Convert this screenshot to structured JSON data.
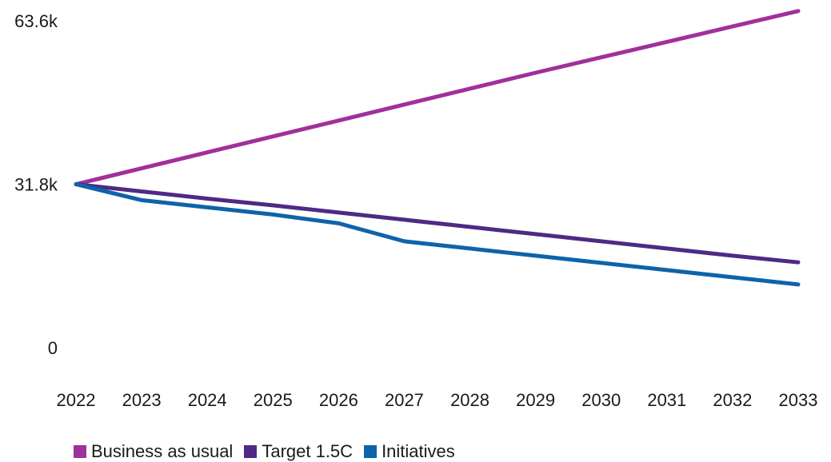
{
  "chart_data": {
    "type": "line",
    "title": "",
    "xlabel": "",
    "ylabel": "",
    "x": [
      "2022",
      "2023",
      "2024",
      "2025",
      "2026",
      "2027",
      "2028",
      "2029",
      "2030",
      "2031",
      "2032",
      "2033"
    ],
    "ylim": [
      0,
      63600
    ],
    "y_ticks": [
      {
        "value": 0,
        "label": "0"
      },
      {
        "value": 31800,
        "label": "31.8k"
      },
      {
        "value": 63600,
        "label": "63.6k"
      }
    ],
    "grid": false,
    "legend_position": "bottom-left",
    "series": [
      {
        "name": "Business as usual",
        "color": "#a0309a",
        "values": [
          31800,
          34900,
          38000,
          41100,
          44200,
          47300,
          50400,
          53500,
          56500,
          59500,
          62500,
          65500
        ]
      },
      {
        "name": "Target 1.5C",
        "color": "#4e2a84",
        "values": [
          31800,
          30400,
          29000,
          27700,
          26300,
          24900,
          23500,
          22100,
          20700,
          19300,
          17900,
          16600
        ]
      },
      {
        "name": "Initiatives",
        "color": "#0e63a9",
        "values": [
          31800,
          28700,
          27300,
          25900,
          24200,
          20700,
          19300,
          17900,
          16500,
          15100,
          13700,
          12300
        ]
      }
    ]
  }
}
